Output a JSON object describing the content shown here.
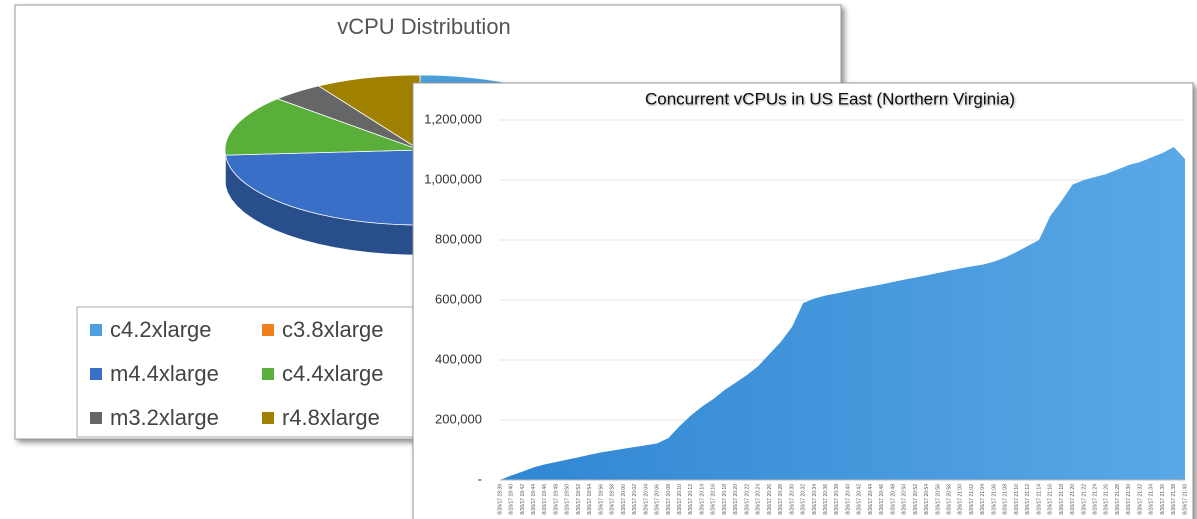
{
  "chart_data": [
    {
      "type": "pie",
      "title": "vCPU Distribution",
      "categories": [
        "c4.2xlarge",
        "c3.8xlarge",
        "m4.4xlarge",
        "c4.4xlarge",
        "m3.2xlarge",
        "r4.8xlarge"
      ],
      "values": [
        30,
        10,
        28,
        12,
        4,
        8
      ],
      "colors": [
        "#4a9fdc",
        "#f07f1e",
        "#3a6fc8",
        "#5aaf3a",
        "#666666",
        "#a08000"
      ]
    },
    {
      "type": "area",
      "title": "Concurrent vCPUs in US East (Northern Virginia)",
      "x": [
        "8/26/17 19:38",
        "8/26/17 19:40",
        "8/26/17 19:42",
        "8/26/17 19:44",
        "8/26/17 19:46",
        "8/26/17 19:48",
        "8/26/17 19:50",
        "8/26/17 19:52",
        "8/26/17 19:54",
        "8/26/17 19:56",
        "8/26/17 19:58",
        "8/26/17 20:00",
        "8/26/17 20:02",
        "8/26/17 20:04",
        "8/26/17 20:06",
        "8/26/17 20:08",
        "8/26/17 20:10",
        "8/26/17 20:12",
        "8/26/17 20:14",
        "8/26/17 20:16",
        "8/26/17 20:18",
        "8/26/17 20:20",
        "8/26/17 20:22",
        "8/26/17 20:24",
        "8/26/17 20:26",
        "8/26/17 20:28",
        "8/26/17 20:30",
        "8/26/17 20:32",
        "8/26/17 20:34",
        "8/26/17 20:36",
        "8/26/17 20:38",
        "8/26/17 20:40",
        "8/26/17 20:42",
        "8/26/17 20:44",
        "8/26/17 20:46",
        "8/26/17 20:48",
        "8/26/17 20:50",
        "8/26/17 20:52",
        "8/26/17 20:54",
        "8/26/17 20:56",
        "8/26/17 20:58",
        "8/26/17 21:00",
        "8/26/17 21:02",
        "8/26/17 21:04",
        "8/26/17 21:06",
        "8/26/17 21:08",
        "8/26/17 21:10",
        "8/26/17 21:12",
        "8/26/17 21:14",
        "8/26/17 21:16",
        "8/26/17 21:18",
        "8/26/17 21:20",
        "8/26/17 21:22",
        "8/26/17 21:24",
        "8/26/17 21:26",
        "8/26/17 21:28",
        "8/26/17 21:30",
        "8/26/17 21:32",
        "8/26/17 21:34",
        "8/26/17 21:36",
        "8/26/17 21:38",
        "8/26/17 21:40"
      ],
      "values": [
        0,
        15000,
        28000,
        42000,
        52000,
        60000,
        68000,
        76000,
        84000,
        92000,
        98000,
        104000,
        110000,
        116000,
        122000,
        140000,
        180000,
        215000,
        245000,
        270000,
        300000,
        325000,
        350000,
        380000,
        420000,
        460000,
        510000,
        590000,
        605000,
        615000,
        622000,
        630000,
        638000,
        645000,
        652000,
        660000,
        668000,
        675000,
        682000,
        690000,
        698000,
        705000,
        712000,
        718000,
        728000,
        742000,
        760000,
        780000,
        800000,
        880000,
        930000,
        985000,
        1000000,
        1010000,
        1020000,
        1035000,
        1050000,
        1060000,
        1075000,
        1090000,
        1110000,
        1070000
      ],
      "color": "#3d94db",
      "ylim": [
        0,
        1280000
      ],
      "yticks": [
        {
          "value": 0,
          "label": "-"
        },
        {
          "value": 200000,
          "label": "200,000"
        },
        {
          "value": 400000,
          "label": "400,000"
        },
        {
          "value": 600000,
          "label": "600,000"
        },
        {
          "value": 800000,
          "label": "800,000"
        },
        {
          "value": 1000000,
          "label": "1,000,000"
        },
        {
          "value": 1200000,
          "label": "1,200,000"
        }
      ],
      "grid": true
    }
  ]
}
